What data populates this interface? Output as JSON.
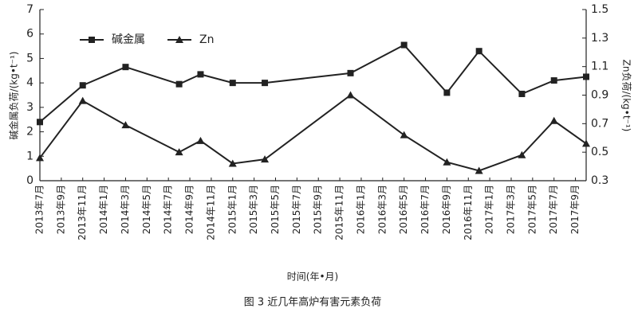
{
  "chart_data": {
    "type": "line",
    "x_label": "时间(年•月)",
    "y_label": "碱金属负荷/(kg•t⁻¹)",
    "y2_label": "Zn负荷/(kg•t⁻¹)",
    "caption": "图 3  近几年高炉有害元素负荷",
    "x": [
      0,
      4,
      8,
      13,
      15,
      18,
      21,
      29,
      34,
      38,
      41,
      45,
      48,
      51
    ],
    "xlim": [
      0,
      51
    ],
    "xticks": [
      {
        "value": 0,
        "label": "2013年7月"
      },
      {
        "value": 2,
        "label": "2013年9月"
      },
      {
        "value": 4,
        "label": "2013年11月"
      },
      {
        "value": 6,
        "label": "2014年1月"
      },
      {
        "value": 8,
        "label": "2014年3月"
      },
      {
        "value": 10,
        "label": "2014年5月"
      },
      {
        "value": 12,
        "label": "2014年7月"
      },
      {
        "value": 14,
        "label": "2014年9月"
      },
      {
        "value": 16,
        "label": "2014年11月"
      },
      {
        "value": 18,
        "label": "2015年1月"
      },
      {
        "value": 20,
        "label": "2015年3月"
      },
      {
        "value": 22,
        "label": "2015年5月"
      },
      {
        "value": 24,
        "label": "2015年7月"
      },
      {
        "value": 26,
        "label": "2015年9月"
      },
      {
        "value": 28,
        "label": "2015年11月"
      },
      {
        "value": 30,
        "label": "2016年1月"
      },
      {
        "value": 32,
        "label": "2016年3月"
      },
      {
        "value": 34,
        "label": "2016年5月"
      },
      {
        "value": 36,
        "label": "2016年7月"
      },
      {
        "value": 38,
        "label": "2016年9月"
      },
      {
        "value": 40,
        "label": "2016年11月"
      },
      {
        "value": 42,
        "label": "2017年1月"
      },
      {
        "value": 44,
        "label": "2017年3月"
      },
      {
        "value": 46,
        "label": "2017年5月"
      },
      {
        "value": 48,
        "label": "2017年7月"
      },
      {
        "value": 50,
        "label": "2017年9月"
      }
    ],
    "ylim": [
      0,
      7
    ],
    "yticks": [
      0,
      1,
      2,
      3,
      4,
      5,
      6,
      7
    ],
    "y2lim": [
      0.3,
      1.5
    ],
    "y2ticks": [
      0.3,
      0.5,
      0.7,
      0.9,
      1.1,
      1.3,
      1.5
    ],
    "series": [
      {
        "name": "碱金属",
        "color": "#222222",
        "marker": "square",
        "values": [
          2.4,
          3.9,
          4.65,
          3.95,
          4.35,
          4.0,
          4.0,
          4.4,
          5.55,
          3.6,
          5.3,
          3.55,
          4.1,
          4.25
        ]
      },
      {
        "name": "Zn",
        "color": "#222222",
        "marker": "triangle",
        "axis": "y2",
        "values": [
          0.46,
          0.86,
          0.69,
          0.5,
          0.58,
          0.42,
          0.45,
          0.9,
          0.62,
          0.43,
          0.37,
          0.48,
          0.72,
          0.56
        ]
      }
    ]
  }
}
